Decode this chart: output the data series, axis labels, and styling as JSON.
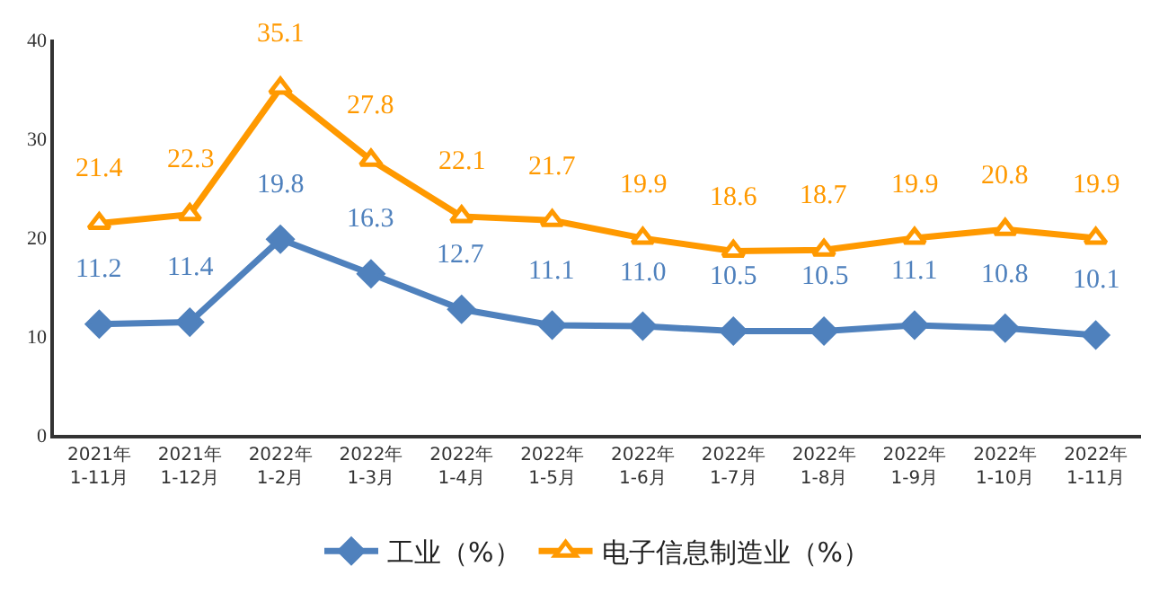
{
  "chart_data": {
    "type": "line",
    "categories": [
      "2021年\n1-11月",
      "2021年\n1-12月",
      "2022年\n1-2月",
      "2022年\n1-3月",
      "2022年\n1-4月",
      "2022年\n1-5月",
      "2022年\n1-6月",
      "2022年\n1-7月",
      "2022年\n1-8月",
      "2022年\n1-9月",
      "2022年\n1-10月",
      "2022年\n1-11月"
    ],
    "series": [
      {
        "name": "工业（%）",
        "color": "#4f81bd",
        "marker": "diamond",
        "values": [
          11.2,
          11.4,
          19.8,
          16.3,
          12.7,
          11.1,
          11.0,
          10.5,
          10.5,
          11.1,
          10.8,
          10.1
        ],
        "value_labels": [
          "11.2",
          "11.4",
          "19.8",
          "16.3",
          "12.7",
          "11.1",
          "11.0",
          "10.5",
          "10.5",
          "11.1",
          "10.8",
          "10.1"
        ]
      },
      {
        "name": "电子信息制造业（%）",
        "color": "#ff9900",
        "marker": "triangle",
        "values": [
          21.4,
          22.3,
          35.1,
          27.8,
          22.1,
          21.7,
          19.9,
          18.6,
          18.7,
          19.9,
          20.8,
          19.9
        ],
        "value_labels": [
          "21.4",
          "22.3",
          "35.1",
          "27.8",
          "22.1",
          "21.7",
          "19.9",
          "18.6",
          "18.7",
          "19.9",
          "20.8",
          "19.9"
        ]
      }
    ],
    "ylim": [
      0,
      40
    ],
    "yticks": [
      0,
      10,
      20,
      30,
      40
    ],
    "legend": "bottom",
    "line_style": "solid"
  }
}
